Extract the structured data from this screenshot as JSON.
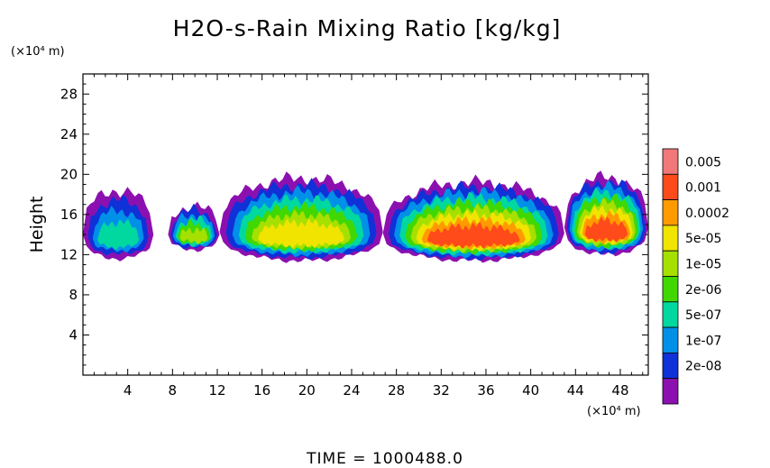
{
  "chart_data": {
    "type": "heatmap",
    "title": "H2O-s-Rain Mixing Ratio [kg/kg]",
    "xlabel": "",
    "ylabel": "Height",
    "x_unit": "(×10⁴ m)",
    "y_unit": "(×10⁴ m)",
    "xlim": [
      0,
      50.5
    ],
    "ylim": [
      0,
      30
    ],
    "x_ticks": [
      "4",
      "8",
      "12",
      "16",
      "20",
      "24",
      "28",
      "32",
      "36",
      "40",
      "44",
      "48"
    ],
    "x_tick_values": [
      4,
      8,
      12,
      16,
      20,
      24,
      28,
      32,
      36,
      40,
      44,
      48
    ],
    "y_ticks": [
      "4",
      "8",
      "12",
      "16",
      "20",
      "24",
      "28"
    ],
    "y_tick_values": [
      4,
      8,
      12,
      16,
      20,
      24,
      28
    ],
    "colorbar": {
      "labels": [
        "0.005",
        "0.001",
        "0.0002",
        "5e-05",
        "1e-05",
        "2e-06",
        "5e-07",
        "1e-07",
        "2e-08"
      ],
      "colors": [
        "#f07878",
        "#ff4a1a",
        "#ff9a00",
        "#f0e400",
        "#a6e000",
        "#40d800",
        "#00d8a0",
        "#0090e8",
        "#1030d8",
        "#8c10b0"
      ]
    },
    "cloud_bands": [
      {
        "x_start": 0.0,
        "x_end": 6.3,
        "z_bottom": 11.6,
        "z_top": 18.4,
        "core": 1
      },
      {
        "x_start": 7.6,
        "x_end": 12.2,
        "z_bottom": 12.5,
        "z_top": 16.8,
        "core": 3
      },
      {
        "x_start": 12.2,
        "x_end": 26.8,
        "z_bottom": 11.4,
        "z_top": 19.6,
        "core": 4
      },
      {
        "x_start": 26.8,
        "x_end": 43.0,
        "z_bottom": 11.4,
        "z_top": 19.2,
        "core": 6
      },
      {
        "x_start": 43.0,
        "x_end": 50.5,
        "z_bottom": 12.0,
        "z_top": 19.7,
        "core": 6
      }
    ],
    "footer_text": "TIME  =  1000488.0"
  }
}
